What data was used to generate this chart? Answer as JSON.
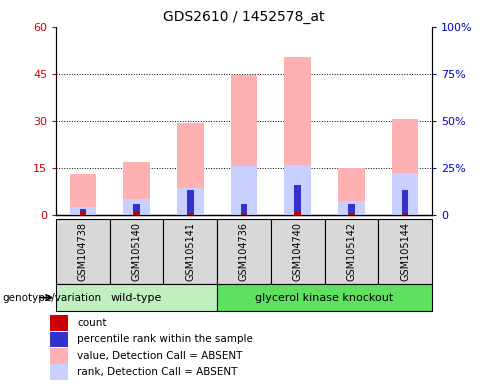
{
  "title": "GDS2610 / 1452578_at",
  "samples": [
    "GSM104738",
    "GSM105140",
    "GSM105141",
    "GSM104736",
    "GSM104740",
    "GSM105142",
    "GSM105144"
  ],
  "count_values": [
    1.2,
    1.2,
    0.8,
    0.8,
    1.2,
    0.8,
    0.8
  ],
  "percentile_values": [
    2.0,
    3.5,
    8.0,
    3.5,
    9.5,
    3.5,
    8.0
  ],
  "absent_value_values": [
    13.0,
    17.0,
    29.5,
    44.5,
    50.5,
    15.0,
    30.5
  ],
  "absent_rank_values": [
    2.5,
    5.0,
    8.5,
    15.5,
    16.0,
    4.5,
    13.5
  ],
  "ylim_left": [
    0,
    60
  ],
  "ylim_right": [
    0,
    100
  ],
  "yticks_left": [
    0,
    15,
    30,
    45,
    60
  ],
  "yticks_right": [
    0,
    25,
    50,
    75,
    100
  ],
  "yticklabels_left": [
    "0",
    "15",
    "30",
    "45",
    "60"
  ],
  "yticklabels_right": [
    "0",
    "25%",
    "50%",
    "75%",
    "100%"
  ],
  "bar_width": 0.5,
  "colors": {
    "count": "#cc0000",
    "percentile": "#3333cc",
    "absent_value": "#ffb0b0",
    "absent_rank": "#c8d0ff",
    "left_tick": "#cc0000",
    "right_tick": "#0000cc"
  },
  "group_spans": [
    {
      "label": "wild-type",
      "start": 0,
      "end": 2,
      "color": "#c0f0c0"
    },
    {
      "label": "glycerol kinase knockout",
      "start": 3,
      "end": 6,
      "color": "#60e060"
    }
  ],
  "legend_items": [
    {
      "label": "count",
      "color": "#cc0000"
    },
    {
      "label": "percentile rank within the sample",
      "color": "#3333cc"
    },
    {
      "label": "value, Detection Call = ABSENT",
      "color": "#ffb0b0"
    },
    {
      "label": "rank, Detection Call = ABSENT",
      "color": "#c8d0ff"
    }
  ]
}
